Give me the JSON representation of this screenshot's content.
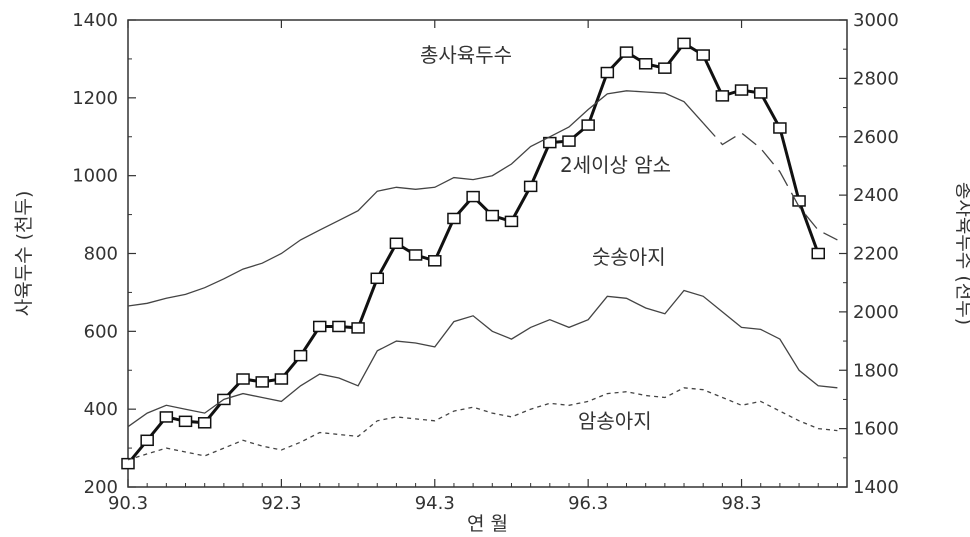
{
  "chart_data": {
    "type": "line",
    "xlabel": "연 월",
    "ylabel_left": "사육두수 (천두)",
    "ylabel_right": "총사육두수 (천두)",
    "x_tick_labels": [
      "90.3",
      "92.3",
      "94.3",
      "96.3",
      "98.3"
    ],
    "x_tick_positions": [
      0,
      8,
      16,
      24,
      32
    ],
    "xlim": [
      0,
      37.5
    ],
    "ylim_left": [
      200,
      1400
    ],
    "yticks_left": [
      200,
      400,
      600,
      800,
      1000,
      1200,
      1400
    ],
    "ylim_right": [
      1400,
      3000
    ],
    "yticks_right": [
      1400,
      1600,
      1800,
      2000,
      2200,
      2400,
      2600,
      2800,
      3000
    ],
    "annotations": [
      {
        "text": "총사육두수",
        "series": "total"
      },
      {
        "text": "2세이상 암소",
        "series": "cows"
      },
      {
        "text": "숫송아지",
        "series": "bull_calves"
      },
      {
        "text": "암송아지",
        "series": "heifer_calves"
      }
    ],
    "series": [
      {
        "key": "total",
        "axis": "right",
        "style": "bold-square-markers",
        "x": [
          0,
          1,
          2,
          3,
          4,
          5,
          6,
          7,
          8,
          9,
          10,
          11,
          12,
          13,
          14,
          15,
          16,
          17,
          18,
          19,
          20,
          21,
          22,
          23,
          24,
          25,
          26,
          27,
          28,
          29,
          30,
          31,
          32,
          33,
          34,
          35,
          36
        ],
        "values": [
          1480,
          1560,
          1640,
          1625,
          1620,
          1700,
          1770,
          1760,
          1770,
          1850,
          1950,
          1950,
          1945,
          2115,
          2235,
          2195,
          2175,
          2320,
          2395,
          2330,
          2310,
          2430,
          2580,
          2585,
          2640,
          2820,
          2890,
          2850,
          2835,
          2920,
          2880,
          2740,
          2760,
          2750,
          2630,
          2380,
          2200
        ]
      },
      {
        "key": "cows",
        "axis": "left",
        "style": "solid-thin",
        "x": [
          0,
          1,
          2,
          3,
          4,
          5,
          6,
          7,
          8,
          9,
          10,
          11,
          12,
          13,
          14,
          15,
          16,
          17,
          18,
          19,
          20,
          21,
          22,
          23,
          24,
          25,
          26,
          27,
          28,
          29,
          30,
          31,
          32,
          33,
          34,
          35,
          36,
          37
        ],
        "values": [
          665,
          672,
          685,
          695,
          712,
          735,
          760,
          775,
          800,
          835,
          860,
          885,
          910,
          960,
          970,
          965,
          970,
          995,
          990,
          1000,
          1030,
          1075,
          1100,
          1125,
          1170,
          1210,
          1218,
          1215,
          1212,
          1190,
          1135,
          1080,
          1110,
          1070,
          1010,
          920,
          860,
          835
        ],
        "dashed_from_index": 30
      },
      {
        "key": "bull_calves",
        "axis": "left",
        "style": "solid-thin",
        "x": [
          0,
          1,
          2,
          3,
          4,
          5,
          6,
          7,
          8,
          9,
          10,
          11,
          12,
          13,
          14,
          15,
          16,
          17,
          18,
          19,
          20,
          21,
          22,
          23,
          24,
          25,
          26,
          27,
          28,
          29,
          30,
          31,
          32,
          33,
          34,
          35,
          36,
          37
        ],
        "values": [
          355,
          390,
          410,
          400,
          390,
          425,
          440,
          430,
          420,
          460,
          490,
          480,
          460,
          550,
          575,
          570,
          560,
          625,
          640,
          600,
          580,
          610,
          630,
          610,
          630,
          690,
          685,
          660,
          645,
          705,
          690,
          650,
          610,
          605,
          580,
          500,
          460,
          455
        ]
      },
      {
        "key": "heifer_calves",
        "axis": "left",
        "style": "dashed",
        "x": [
          0,
          1,
          2,
          3,
          4,
          5,
          6,
          7,
          8,
          9,
          10,
          11,
          12,
          13,
          14,
          15,
          16,
          17,
          18,
          19,
          20,
          21,
          22,
          23,
          24,
          25,
          26,
          27,
          28,
          29,
          30,
          31,
          32,
          33,
          34,
          35,
          36,
          37
        ],
        "values": [
          270,
          285,
          300,
          290,
          280,
          300,
          320,
          305,
          295,
          315,
          340,
          335,
          330,
          370,
          380,
          375,
          370,
          395,
          405,
          390,
          380,
          400,
          415,
          410,
          420,
          440,
          445,
          435,
          430,
          455,
          450,
          430,
          410,
          420,
          395,
          370,
          350,
          345
        ]
      }
    ],
    "colors": {
      "total": "#111111",
      "lines": "#444444",
      "axis": "#333333",
      "marker_fill": "#ffffff"
    }
  }
}
